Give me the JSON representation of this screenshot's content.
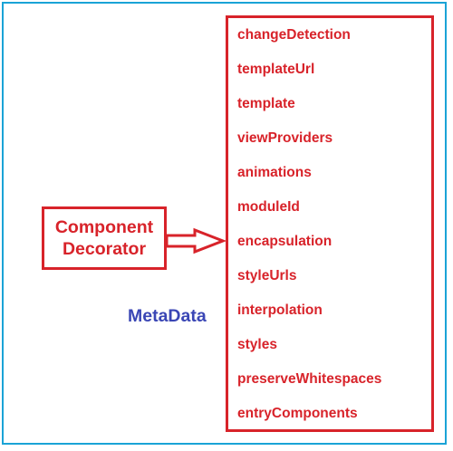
{
  "diagram": {
    "component_decorator": {
      "line1": "Component",
      "line2": "Decorator"
    },
    "metadata_label": "MetaData",
    "metadata_items": [
      "changeDetection",
      "templateUrl",
      "template",
      "viewProviders",
      "animations",
      "moduleId",
      "encapsulation",
      "styleUrls",
      "interpolation",
      "styles",
      "preserveWhitespaces",
      "entryComponents"
    ],
    "colors": {
      "frame": "#1aa3d6",
      "accent": "#d8232a",
      "metadata_label": "#3a46b5"
    }
  }
}
